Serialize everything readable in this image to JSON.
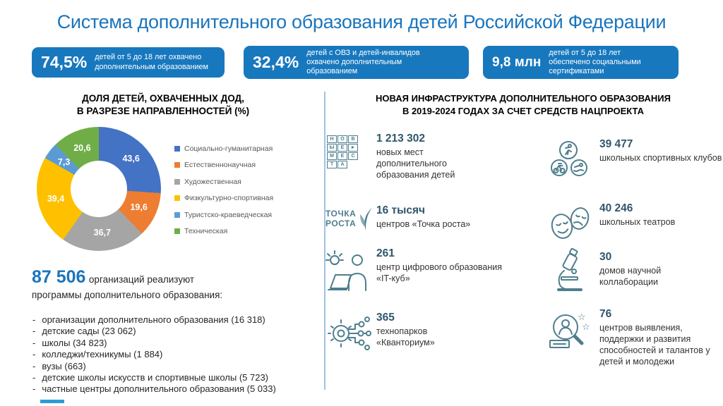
{
  "title": "Система дополнительного образования детей Российской Федерации",
  "stats": [
    {
      "value": "74,5%",
      "label": "детей от 5 до 18 лет охвачено дополнительным образованием"
    },
    {
      "value": "32,4%",
      "label": "детей с ОВЗ и детей-инвалидов охвачено дополнительным образованием"
    },
    {
      "value": "9,8 млн",
      "label": "детей от 5 до 18 лет обеспечено социальными сертификатами"
    }
  ],
  "left": {
    "chart_heading": [
      "ДОЛЯ ДЕТЕЙ, ОХВАЧЕННЫХ ДОД,",
      "В РАЗРЕЗЕ НАПРАВЛЕННОСТЕЙ (%)"
    ],
    "orgs": {
      "value": "87 506",
      "label_line1": "организаций реализуют",
      "label_line2": "программы дополнительного образования:",
      "items": [
        "организации дополнительного образования (16 318)",
        "детские сады (23 062)",
        "школы (34 823)",
        "колледжи/техникумы (1 884)",
        "вузы (663)",
        "детские школы искусств и спортивные школы (5 723)",
        "частные центры дополнительного образования (5 033)"
      ]
    }
  },
  "chart_data": {
    "type": "pie",
    "subtype": "donut",
    "title": "ДОЛЯ ДЕТЕЙ, ОХВАЧЕННЫХ ДОД, В РАЗРЕЗЕ НАПРАВЛЕННОСТЕЙ (%)",
    "labels": [
      "Социально-гуманитарная",
      "Естественнонаучная",
      "Художественная",
      "Физкультурно-спортивная",
      "Туристско-краеведческая",
      "Техническая"
    ],
    "values": [
      43.6,
      19.6,
      36.7,
      39.4,
      7.3,
      20.6
    ],
    "display_values": [
      "43,6",
      "19,6",
      "36,7",
      "39,4",
      "7,3",
      "20,6"
    ],
    "colors": [
      "#4472C4",
      "#ED7D31",
      "#A5A5A5",
      "#FFC000",
      "#5B9BD5",
      "#70AD47"
    ],
    "legend_position": "right",
    "donut_hole_ratio": 0.45,
    "start_angle_deg": 0,
    "direction": "clockwise"
  },
  "right": {
    "heading": [
      "НОВАЯ ИНФРАСТРУКТУРА ДОПОЛНИТЕЛЬНОГО ОБРАЗОВАНИЯ",
      "В 2019-2024 ГОДАХ ЗА СЧЕТ СРЕДСТВ НАЦПРОЕКТА"
    ],
    "items": [
      {
        "icon": "new-places-logo",
        "logo_rows": [
          "НОВ",
          "ЫЕ►",
          "МЕС",
          "ТА"
        ],
        "value": "1 213 302",
        "label": "новых мест дополнительного образования детей"
      },
      {
        "icon": "tochka-rosta-logo",
        "logo_line1": "ТОЧКА",
        "logo_line2": "РОСТА",
        "value": "16 тысяч",
        "label": "центров «Точка роста»"
      },
      {
        "icon": "person-laptop-idea-icon",
        "value": "261",
        "label": "центр цифрового образования «IT-куб»"
      },
      {
        "icon": "gear-circuit-icon",
        "value": "365",
        "label": "технопарков «Кванториум»"
      },
      {
        "icon": "sports-icons",
        "value": "39 477",
        "label": "школьных спортивных клубов"
      },
      {
        "icon": "theater-masks-icon",
        "value": "40 246",
        "label": "школьных театров"
      },
      {
        "icon": "microscope-icon",
        "value": "30",
        "label": "домов научной коллаборации"
      },
      {
        "icon": "talent-search-icon",
        "value": "76",
        "label": "центров выявления, поддержки и развития способностей и талантов у детей и молодежи"
      }
    ]
  },
  "colors": {
    "accent_blue": "#1B75BC",
    "stat_box_blue": "#1878BE",
    "divider_blue": "#9DC3E6",
    "icon_teal": "#4E7E8E",
    "value_teal": "#2F566B",
    "legend_text_gray": "#595959"
  }
}
